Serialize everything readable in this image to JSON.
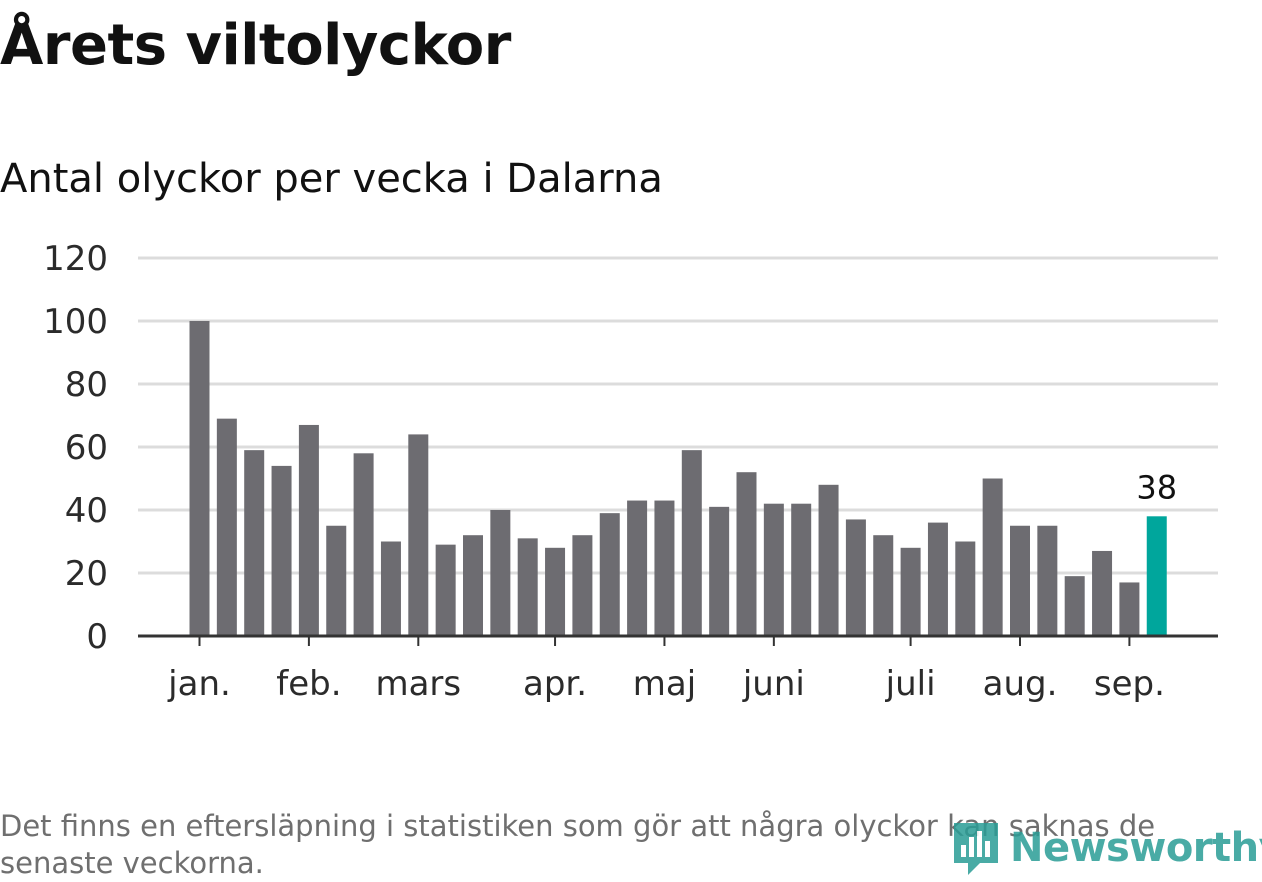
{
  "title": "Årets viltolyckor",
  "subtitle": "Antal olyckor per vecka i Dalarna",
  "note": "Det finns en eftersläpning i statistiken som gör att några olyckor kan saknas de senaste veckorna.",
  "brand": {
    "name": "Newsworthy",
    "icon": "newsworthy-logo-icon",
    "color": "#2a9d96"
  },
  "colors": {
    "bar": "#6d6c71",
    "highlight": "#00a69c",
    "grid": "#dcdcdc",
    "axis": "#333333"
  },
  "chart_data": {
    "type": "bar",
    "title": "Årets viltolyckor",
    "subtitle": "Antal olyckor per vecka i Dalarna",
    "ylim": [
      0,
      120
    ],
    "y_ticks": [
      0,
      20,
      40,
      60,
      80,
      100,
      120
    ],
    "grid": true,
    "values": [
      100,
      69,
      59,
      54,
      67,
      35,
      58,
      30,
      64,
      29,
      32,
      40,
      31,
      28,
      32,
      39,
      43,
      43,
      59,
      41,
      52,
      42,
      42,
      48,
      37,
      32,
      28,
      36,
      30,
      50,
      35,
      35,
      19,
      27,
      17,
      38
    ],
    "highlight_index": 35,
    "highlight_label": "38",
    "month_ticks": [
      {
        "label": "jan.",
        "bar": 0
      },
      {
        "label": "feb.",
        "bar": 4
      },
      {
        "label": "mars",
        "bar": 8
      },
      {
        "label": "apr.",
        "bar": 13
      },
      {
        "label": "maj",
        "bar": 17
      },
      {
        "label": "juni",
        "bar": 21
      },
      {
        "label": "juli",
        "bar": 26
      },
      {
        "label": "aug.",
        "bar": 30
      },
      {
        "label": "sep.",
        "bar": 34
      }
    ]
  }
}
